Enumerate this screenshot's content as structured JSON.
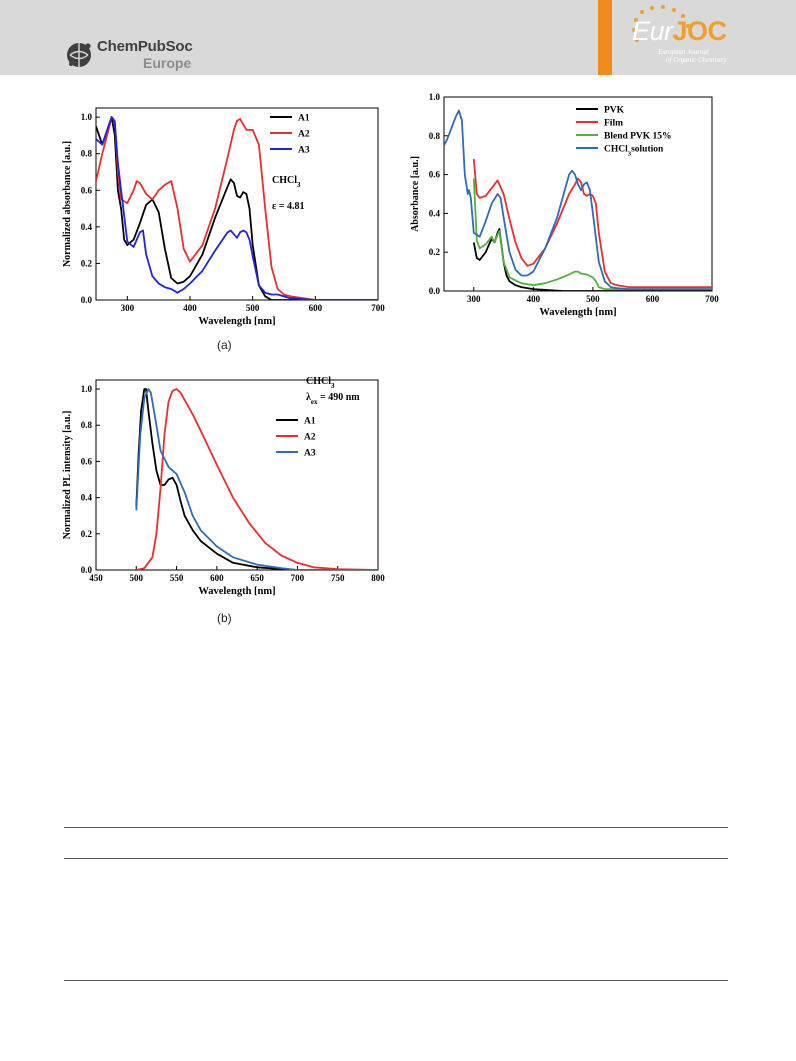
{
  "header": {
    "publisher": {
      "name": "ChemPubSoc",
      "region": "Europe"
    },
    "journal": {
      "logo_prefix": "Eur",
      "logo_suffix": "JOC",
      "line1": "European Journal",
      "line2": "of Organic Chemistry"
    },
    "colors": {
      "band": "#d9d9d9",
      "accent": "#f08c1e"
    }
  },
  "captions": {
    "a": "(a)",
    "b": "(b)"
  },
  "chart_data": [
    {
      "id": "abs-solution",
      "type": "line",
      "xlabel": "Wavelength [nm]",
      "ylabel": "Normalized absorbance [a.u.]",
      "xlim": [
        250,
        700
      ],
      "ylim": [
        0,
        1.05
      ],
      "xticks": [
        300,
        400,
        500,
        600,
        700
      ],
      "yticks": [
        "0.0",
        "0.2",
        "0.4",
        "0.6",
        "0.8",
        "1.0"
      ],
      "legend_position": "top-right",
      "annotations": [
        {
          "text": "CHCl",
          "sub": "3"
        },
        {
          "text": "ε = 4.81"
        }
      ],
      "series": [
        {
          "name": "A1",
          "color": "#000000",
          "x": [
            250,
            260,
            270,
            275,
            280,
            285,
            290,
            295,
            300,
            310,
            320,
            330,
            340,
            350,
            360,
            370,
            380,
            390,
            400,
            420,
            440,
            460,
            465,
            470,
            475,
            480,
            485,
            490,
            495,
            500,
            510,
            520,
            530,
            540,
            560,
            600,
            650,
            700
          ],
          "y": [
            0.95,
            0.85,
            0.95,
            1.0,
            0.9,
            0.6,
            0.5,
            0.33,
            0.3,
            0.33,
            0.42,
            0.52,
            0.55,
            0.48,
            0.28,
            0.12,
            0.09,
            0.1,
            0.13,
            0.25,
            0.45,
            0.62,
            0.66,
            0.64,
            0.57,
            0.56,
            0.59,
            0.58,
            0.5,
            0.3,
            0.08,
            0.02,
            0.0,
            0.0,
            0.0,
            0.0,
            0.0,
            0.0
          ]
        },
        {
          "name": "A2",
          "color": "#e53030",
          "x": [
            250,
            260,
            270,
            275,
            280,
            285,
            290,
            300,
            310,
            315,
            320,
            330,
            340,
            350,
            360,
            370,
            380,
            390,
            400,
            420,
            440,
            460,
            470,
            475,
            480,
            485,
            490,
            500,
            510,
            520,
            530,
            540,
            550,
            560,
            580,
            600,
            650,
            700
          ],
          "y": [
            0.65,
            0.8,
            0.93,
            1.0,
            0.98,
            0.7,
            0.55,
            0.53,
            0.6,
            0.65,
            0.64,
            0.58,
            0.55,
            0.6,
            0.63,
            0.65,
            0.5,
            0.28,
            0.21,
            0.3,
            0.5,
            0.78,
            0.93,
            0.98,
            0.99,
            0.96,
            0.93,
            0.93,
            0.85,
            0.5,
            0.18,
            0.06,
            0.03,
            0.02,
            0.01,
            0.0,
            0.0,
            0.0
          ]
        },
        {
          "name": "A3",
          "color": "#2222dd",
          "x": [
            250,
            260,
            270,
            275,
            280,
            285,
            290,
            300,
            310,
            320,
            325,
            330,
            340,
            350,
            360,
            370,
            380,
            390,
            400,
            420,
            440,
            460,
            465,
            470,
            475,
            480,
            485,
            490,
            495,
            500,
            510,
            520,
            530,
            540,
            560,
            600,
            650,
            700
          ],
          "y": [
            0.88,
            0.85,
            0.95,
            1.0,
            0.97,
            0.75,
            0.6,
            0.32,
            0.29,
            0.37,
            0.38,
            0.25,
            0.13,
            0.09,
            0.07,
            0.06,
            0.04,
            0.06,
            0.09,
            0.16,
            0.27,
            0.37,
            0.38,
            0.36,
            0.34,
            0.37,
            0.38,
            0.37,
            0.33,
            0.24,
            0.08,
            0.04,
            0.03,
            0.03,
            0.01,
            0.0,
            0.0,
            0.0
          ]
        }
      ]
    },
    {
      "id": "abs-film",
      "type": "line",
      "xlabel": "Wavelength [nm]",
      "ylabel": "Absorbance [a.u.]",
      "xlim": [
        250,
        700
      ],
      "ylim": [
        0,
        1.0
      ],
      "xticks": [
        300,
        400,
        500,
        600,
        700
      ],
      "yticks": [
        "0.0",
        "0.2",
        "0.4",
        "0.6",
        "0.8",
        "1.0"
      ],
      "legend_position": "top-right",
      "series": [
        {
          "name": "PVK",
          "color": "#000000",
          "x": [
            300,
            305,
            310,
            320,
            330,
            335,
            340,
            343,
            345,
            348,
            350,
            355,
            360,
            370,
            380,
            400,
            450,
            500,
            600,
            700
          ],
          "y": [
            0.25,
            0.17,
            0.16,
            0.2,
            0.27,
            0.25,
            0.3,
            0.32,
            0.27,
            0.2,
            0.15,
            0.08,
            0.05,
            0.03,
            0.02,
            0.01,
            0.0,
            0.0,
            0.0,
            0.0
          ]
        },
        {
          "name": "Film",
          "color": "#e53030",
          "x": [
            300,
            305,
            310,
            320,
            330,
            340,
            350,
            360,
            370,
            380,
            390,
            400,
            420,
            440,
            460,
            470,
            475,
            480,
            485,
            490,
            495,
            500,
            505,
            510,
            520,
            530,
            540,
            560,
            600,
            650,
            700
          ],
          "y": [
            0.68,
            0.5,
            0.48,
            0.49,
            0.53,
            0.57,
            0.5,
            0.37,
            0.25,
            0.17,
            0.13,
            0.14,
            0.22,
            0.35,
            0.5,
            0.55,
            0.58,
            0.56,
            0.5,
            0.49,
            0.5,
            0.49,
            0.45,
            0.3,
            0.1,
            0.04,
            0.03,
            0.02,
            0.02,
            0.02,
            0.02
          ]
        },
        {
          "name": "Blend PVK 15%",
          "color": "#55b040",
          "x": [
            300,
            305,
            310,
            320,
            330,
            335,
            340,
            343,
            345,
            350,
            360,
            380,
            400,
            420,
            440,
            460,
            470,
            475,
            480,
            490,
            500,
            505,
            510,
            520,
            540,
            560,
            600,
            650,
            700
          ],
          "y": [
            0.58,
            0.26,
            0.22,
            0.24,
            0.28,
            0.25,
            0.29,
            0.31,
            0.26,
            0.15,
            0.07,
            0.04,
            0.03,
            0.04,
            0.06,
            0.085,
            0.1,
            0.1,
            0.09,
            0.085,
            0.07,
            0.05,
            0.02,
            0.01,
            0.01,
            0.01,
            0.01,
            0.01,
            0.01
          ]
        },
        {
          "name": "CHCl3 solution",
          "color": "#2e6db5",
          "x": [
            250,
            255,
            260,
            265,
            270,
            275,
            280,
            285,
            290,
            292,
            295,
            300,
            310,
            320,
            330,
            340,
            345,
            350,
            360,
            370,
            380,
            390,
            400,
            420,
            440,
            460,
            465,
            470,
            475,
            480,
            485,
            490,
            495,
            500,
            510,
            520,
            530,
            540,
            560,
            600,
            650,
            700
          ],
          "y": [
            0.75,
            0.78,
            0.82,
            0.86,
            0.9,
            0.93,
            0.88,
            0.6,
            0.5,
            0.52,
            0.48,
            0.3,
            0.28,
            0.36,
            0.45,
            0.5,
            0.48,
            0.38,
            0.2,
            0.11,
            0.08,
            0.08,
            0.1,
            0.22,
            0.38,
            0.6,
            0.62,
            0.6,
            0.55,
            0.52,
            0.55,
            0.56,
            0.52,
            0.4,
            0.15,
            0.05,
            0.02,
            0.015,
            0.01,
            0.01,
            0.01,
            0.01
          ]
        }
      ]
    },
    {
      "id": "pl",
      "type": "line",
      "xlabel": "Wavelength [nm]",
      "ylabel": "Normalized PL intensity [a.u.]",
      "xlim": [
        450,
        800
      ],
      "ylim": [
        0,
        1.05
      ],
      "xticks": [
        450,
        500,
        550,
        600,
        650,
        700,
        750,
        800
      ],
      "yticks": [
        "0.0",
        "0.2",
        "0.4",
        "0.6",
        "0.8",
        "1.0"
      ],
      "legend_position": "top-right",
      "annotations": [
        {
          "text": "CHCl",
          "sub": "3"
        },
        {
          "text": "λ",
          "sub": "ex",
          "suffix": " = 490 nm"
        }
      ],
      "series": [
        {
          "name": "A1",
          "color": "#000000",
          "x": [
            500,
            503,
            506,
            510,
            512,
            515,
            520,
            525,
            530,
            535,
            540,
            545,
            550,
            555,
            560,
            570,
            580,
            600,
            620,
            650,
            680,
            700,
            750,
            800
          ],
          "y": [
            0.35,
            0.65,
            0.88,
            1.0,
            1.0,
            0.88,
            0.7,
            0.55,
            0.47,
            0.47,
            0.5,
            0.51,
            0.47,
            0.38,
            0.3,
            0.22,
            0.16,
            0.09,
            0.04,
            0.015,
            0.005,
            0.0,
            0.0,
            0.0
          ]
        },
        {
          "name": "A2",
          "color": "#e53030",
          "x": [
            500,
            510,
            520,
            525,
            530,
            535,
            540,
            545,
            550,
            555,
            560,
            570,
            580,
            600,
            620,
            640,
            660,
            680,
            700,
            720,
            750,
            800
          ],
          "y": [
            0.0,
            0.01,
            0.07,
            0.2,
            0.45,
            0.75,
            0.93,
            0.99,
            1.0,
            0.98,
            0.94,
            0.86,
            0.77,
            0.58,
            0.4,
            0.26,
            0.15,
            0.08,
            0.04,
            0.015,
            0.005,
            0.0
          ]
        },
        {
          "name": "A3",
          "color": "#2e6db5",
          "x": [
            500,
            505,
            510,
            515,
            518,
            520,
            525,
            530,
            540,
            550,
            560,
            570,
            580,
            600,
            620,
            650,
            680,
            700,
            750,
            800
          ],
          "y": [
            0.33,
            0.75,
            0.95,
            1.0,
            0.98,
            0.93,
            0.8,
            0.66,
            0.57,
            0.53,
            0.43,
            0.3,
            0.22,
            0.13,
            0.07,
            0.03,
            0.01,
            0.0,
            0.0,
            0.0
          ]
        }
      ]
    }
  ]
}
